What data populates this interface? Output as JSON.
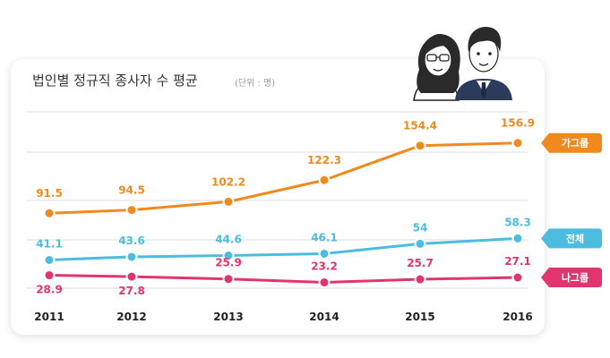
{
  "title": "법인별 정규직 종사자 수 평균",
  "unit": "(단위 : 명)",
  "colors": {
    "orange": "#f08a1e",
    "blue": "#4cbde0",
    "pink": "#e2356f",
    "grid": "#dddddd"
  },
  "illustration": "two-business-people-icon",
  "chart_data": {
    "type": "line",
    "title": "법인별 정규직 종사자 수 평균",
    "unit": "(단위 : 명)",
    "categories": [
      "2011",
      "2012",
      "2013",
      "2014",
      "2015",
      "2016"
    ],
    "series": [
      {
        "name": "가그룹",
        "color": "#f08a1e",
        "values": [
          91.5,
          94.5,
          102.2,
          122.3,
          154.4,
          156.9
        ],
        "labels": [
          "91.5",
          "94.5",
          "102.2",
          "122.3",
          "154.4",
          "156.9"
        ]
      },
      {
        "name": "전체",
        "color": "#4cbde0",
        "values": [
          41.1,
          43.6,
          44.6,
          46.1,
          54,
          58.3
        ],
        "labels": [
          "41.1",
          "43.6",
          "44.6",
          "46.1",
          "54",
          "58.3"
        ]
      },
      {
        "name": "나그룹",
        "color": "#e2356f",
        "values": [
          28.9,
          27.8,
          25.9,
          23.2,
          25.7,
          27.1
        ],
        "labels": [
          "28.9",
          "27.8",
          "25.9",
          "23.2",
          "25.7",
          "27.1"
        ]
      }
    ],
    "legend": "right"
  }
}
